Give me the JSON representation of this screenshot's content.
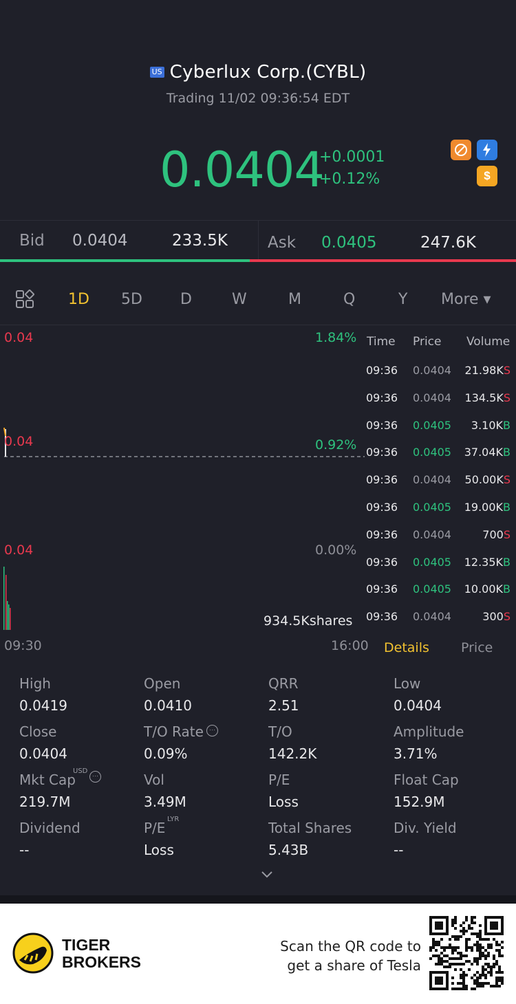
{
  "header": {
    "market_badge": "US",
    "title": "Cyberlux Corp.(CYBL)",
    "status": "Trading 11/02 09:36:54 EDT"
  },
  "quote": {
    "price": "0.0404",
    "change": "+0.0001",
    "change_pct": "+0.12%"
  },
  "bid_ask": {
    "bid_label": "Bid",
    "bid_price": "0.0404",
    "bid_size": "233.5K",
    "ask_label": "Ask",
    "ask_price": "0.0405",
    "ask_size": "247.6K",
    "bid_fraction": 0.484
  },
  "tabs": [
    "1D",
    "5D",
    "D",
    "W",
    "M",
    "Q",
    "Y"
  ],
  "tabs_more": "More ▾",
  "active_tab": "1D",
  "chart": {
    "y_top": "0.04",
    "y_mid": "0.04",
    "y_bot": "0.04",
    "pct_top": "1.84%",
    "pct_mid": "0.92%",
    "pct_bot": "0.00%",
    "volume": "934.5Kshares",
    "x_start": "09:30",
    "x_end": "16:00"
  },
  "trades": {
    "headers": [
      "Time",
      "Price",
      "Volume"
    ],
    "rows": [
      {
        "time": "09:36",
        "price": "0.0404",
        "volume": "21.98K",
        "side": "S"
      },
      {
        "time": "09:36",
        "price": "0.0404",
        "volume": "134.5K",
        "side": "S"
      },
      {
        "time": "09:36",
        "price": "0.0405",
        "volume": "3.10K",
        "side": "B"
      },
      {
        "time": "09:36",
        "price": "0.0405",
        "volume": "37.04K",
        "side": "B"
      },
      {
        "time": "09:36",
        "price": "0.0404",
        "volume": "50.00K",
        "side": "S"
      },
      {
        "time": "09:36",
        "price": "0.0405",
        "volume": "19.00K",
        "side": "B"
      },
      {
        "time": "09:36",
        "price": "0.0404",
        "volume": "700",
        "side": "S"
      },
      {
        "time": "09:36",
        "price": "0.0405",
        "volume": "12.35K",
        "side": "B"
      },
      {
        "time": "09:36",
        "price": "0.0405",
        "volume": "10.00K",
        "side": "B"
      },
      {
        "time": "09:36",
        "price": "0.0404",
        "volume": "300",
        "side": "S"
      }
    ],
    "tab_details": "Details",
    "tab_price": "Price"
  },
  "stats": [
    {
      "label": "High",
      "value": "0.0419"
    },
    {
      "label": "Open",
      "value": "0.0410"
    },
    {
      "label": "QRR",
      "value": "2.51"
    },
    {
      "label": "Low",
      "value": "0.0404"
    },
    {
      "label": "Close",
      "value": "0.0404"
    },
    {
      "label": "T/O Rate",
      "value": "0.09%"
    },
    {
      "label": "T/O",
      "value": "142.2K"
    },
    {
      "label": "Amplitude",
      "value": "3.71%"
    },
    {
      "label": "Mkt Cap",
      "value": "219.7M",
      "sup": "USD"
    },
    {
      "label": "Vol",
      "value": "3.49M"
    },
    {
      "label": "P/E",
      "value": "Loss"
    },
    {
      "label": "Float Cap",
      "value": "152.9M"
    },
    {
      "label": "Dividend",
      "value": "--"
    },
    {
      "label": "P/E",
      "value": "Loss",
      "sup": "LYR"
    },
    {
      "label": "Total Shares",
      "value": "5.43B"
    },
    {
      "label": "Div. Yield",
      "value": "--"
    }
  ],
  "footer": {
    "brand_line1": "TIGER",
    "brand_line2": "BROKERS",
    "scan_line1": "Scan the QR code to",
    "scan_line2": "get a share of Tesla"
  },
  "colors": {
    "up": "#2ec27e",
    "down": "#e8394e",
    "accent": "#f2c230",
    "background": "#1f2029"
  }
}
